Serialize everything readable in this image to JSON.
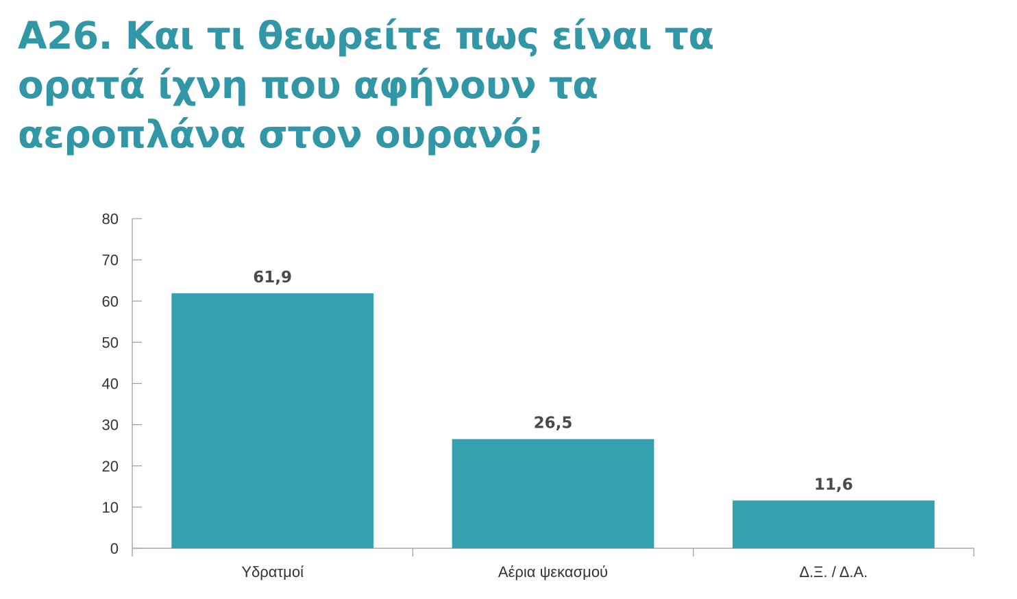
{
  "colors": {
    "title": "#3197A6",
    "bar": "#35A1AF",
    "axis": "#9a9a9a",
    "text": "#333333"
  },
  "chart_data": {
    "type": "bar",
    "title": "A26. Και τι θεωρείτε πως είναι τα ορατά ίχνη που αφήνουν τα αεροπλάνα στον ουρανό;",
    "categories": [
      "Υδρατμοί",
      "Αέρια ψεκασμού",
      "Δ.Ξ. / Δ.Α."
    ],
    "values": [
      61.9,
      26.5,
      11.6
    ],
    "value_labels": [
      "61,9",
      "26,5",
      "11,6"
    ],
    "ylim": [
      0,
      80
    ],
    "yticks": [
      0,
      10,
      20,
      30,
      40,
      50,
      60,
      70,
      80
    ],
    "xlabel": "",
    "ylabel": "",
    "grid": false,
    "legend": "none"
  }
}
